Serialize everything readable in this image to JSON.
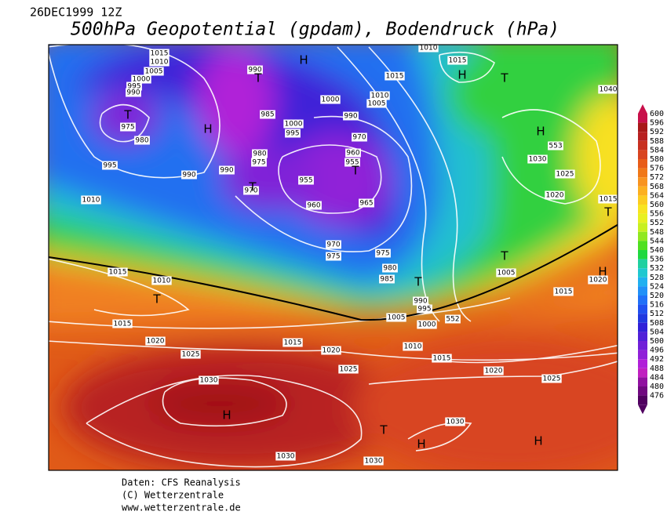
{
  "header": {
    "date": "26DEC1999 12Z",
    "title": "500hPa Geopotential (gpdam), Bodendruck (hPa)"
  },
  "colorbar": {
    "levels": [
      600,
      596,
      592,
      588,
      584,
      580,
      576,
      572,
      568,
      564,
      560,
      556,
      552,
      548,
      544,
      540,
      536,
      532,
      528,
      524,
      520,
      516,
      512,
      508,
      504,
      500,
      496,
      492,
      488,
      484,
      480,
      476
    ],
    "colors": [
      "#c8104a",
      "#a81818",
      "#b82020",
      "#c83020",
      "#d84420",
      "#e85c18",
      "#f07818",
      "#f89420",
      "#fcb020",
      "#fccc20",
      "#f8e420",
      "#e8f020",
      "#c8f020",
      "#90e820",
      "#50e020",
      "#20d840",
      "#20d0a0",
      "#20c8d0",
      "#20b0f0",
      "#2090f8",
      "#2070f8",
      "#2050f0",
      "#2038e0",
      "#3020d8",
      "#5020d8",
      "#7020d8",
      "#9020d8",
      "#b020d8",
      "#c020c0",
      "#9010a0",
      "#700880",
      "#500060"
    ]
  },
  "map_labels": [
    "1015",
    "1010",
    "1005",
    "1000",
    "995",
    "990",
    "975",
    "980",
    "995",
    "990",
    "1010",
    "990",
    "975",
    "980",
    "970",
    "985",
    "990",
    "1000",
    "995",
    "1000",
    "1010",
    "1005",
    "990",
    "970",
    "960",
    "955",
    "955",
    "960",
    "965",
    "970",
    "975",
    "975",
    "980",
    "985",
    "1015",
    "1010",
    "1015",
    "1040",
    "553",
    "1030",
    "1025",
    "1020",
    "1015",
    "1005",
    "1020",
    "1015",
    "552",
    "1005",
    "1000",
    "995",
    "990",
    "1015",
    "1010",
    "1015",
    "1020",
    "1025",
    "1015",
    "1020",
    "1010",
    "1015",
    "1025",
    "1020",
    "1025",
    "1030",
    "1030",
    "1030",
    "1030"
  ],
  "pressure_centers": [
    "T",
    "H",
    "T",
    "H",
    "H",
    "T",
    "H",
    "T",
    "T",
    "T",
    "T",
    "T",
    "T",
    "H",
    "H",
    "T",
    "H",
    "H"
  ],
  "footer": [
    "Daten: CFS Reanalysis",
    "(C) Wetterzentrale",
    "www.wetterzentrale.de"
  ]
}
